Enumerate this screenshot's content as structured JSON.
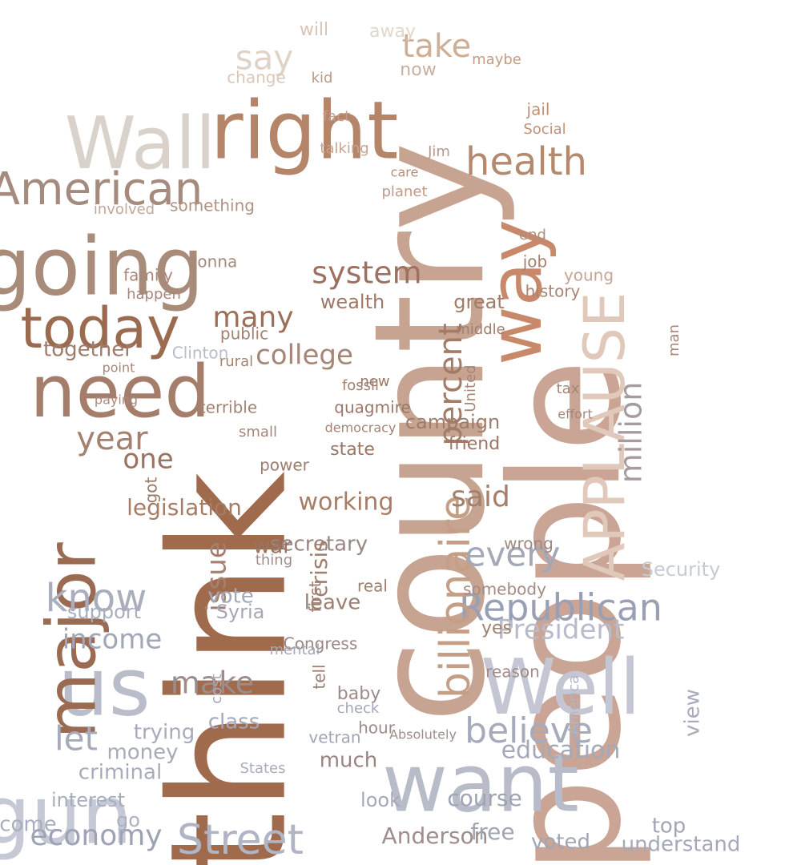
{
  "colors": {
    "background": "#ffffff",
    "warm_dark": "#9a6a4c",
    "warm_mid": "#c49a80",
    "warm_light": "#dcc4b2",
    "cool_dark": "#a7aec0",
    "cool_light": "#c6cad6"
  },
  "words": [
    {
      "text": "think",
      "color": "#a06a4d"
    },
    {
      "text": "country",
      "color": "#c6a491"
    },
    {
      "text": "people",
      "color": "#caa595"
    },
    {
      "text": "going",
      "color": "#a98b7a"
    },
    {
      "text": "right",
      "color": "#b48568"
    },
    {
      "text": "Wall",
      "color": "#d9d2ca"
    },
    {
      "text": "want",
      "color": "#b8bcc9"
    },
    {
      "text": "Well",
      "color": "#c4c7d3"
    },
    {
      "text": "gun",
      "color": "#c5c9d6"
    },
    {
      "text": "us",
      "color": "#b9bdca"
    },
    {
      "text": "need",
      "color": "#a47e6a"
    },
    {
      "text": "major",
      "color": "#9a6a52"
    },
    {
      "text": "today",
      "color": "#9b6b50"
    },
    {
      "text": "APPLAUSE",
      "color": "#e0c9ba"
    },
    {
      "text": "American",
      "color": "#a58b7e"
    },
    {
      "text": "way",
      "color": "#c7896a"
    },
    {
      "text": "health",
      "color": "#b48a6e"
    },
    {
      "text": "Republican",
      "color": "#9aa0b3"
    },
    {
      "text": "billionaire",
      "color": "#c59e86"
    },
    {
      "text": "Street",
      "color": "#b0b5c5"
    },
    {
      "text": "know",
      "color": "#a9aebd"
    },
    {
      "text": "believe",
      "color": "#a6abbc"
    },
    {
      "text": "every",
      "color": "#a3a8b9"
    },
    {
      "text": "system",
      "color": "#9d7161"
    },
    {
      "text": "say",
      "color": "#dfd3c8"
    },
    {
      "text": "take",
      "color": "#cfae96"
    },
    {
      "text": "year",
      "color": "#a3806f"
    },
    {
      "text": "million",
      "color": "#a69b9f"
    },
    {
      "text": "college",
      "color": "#a58676"
    },
    {
      "text": "percent",
      "color": "#a37c67"
    },
    {
      "text": "let",
      "color": "#a6abbc"
    },
    {
      "text": "economy",
      "color": "#9ea3b4"
    },
    {
      "text": "income",
      "color": "#a2a7b8"
    },
    {
      "text": "President",
      "color": "#b8bcca"
    },
    {
      "text": "education",
      "color": "#a4a9ba"
    },
    {
      "text": "make",
      "color": "#9c8d8b"
    },
    {
      "text": "issue",
      "color": "#a4806e"
    },
    {
      "text": "one",
      "color": "#9a725f"
    },
    {
      "text": "said",
      "color": "#a37f6c"
    },
    {
      "text": "many",
      "color": "#9c6f58"
    },
    {
      "text": "legislation",
      "color": "#a67c64"
    },
    {
      "text": "working",
      "color": "#a67d66"
    },
    {
      "text": "secretary",
      "color": "#9b8781"
    },
    {
      "text": "campaign",
      "color": "#9c7c6b"
    },
    {
      "text": "together",
      "color": "#9e7c6b"
    },
    {
      "text": "war",
      "color": "#9b7361"
    },
    {
      "text": "crisis",
      "color": "#a17e6c"
    },
    {
      "text": "Anderson",
      "color": "#9f8d89"
    },
    {
      "text": "course",
      "color": "#9fa4b4"
    },
    {
      "text": "free",
      "color": "#a0a5b5"
    },
    {
      "text": "voted",
      "color": "#a1a6b6"
    },
    {
      "text": "top",
      "color": "#a1a6b6"
    },
    {
      "text": "understand",
      "color": "#a4a9b9"
    },
    {
      "text": "Security",
      "color": "#c6cad5"
    },
    {
      "text": "view",
      "color": "#a7abbb"
    },
    {
      "text": "support",
      "color": "#a9aebd"
    },
    {
      "text": "leave",
      "color": "#9b7f72"
    },
    {
      "text": "vote",
      "color": "#a3a8b8"
    },
    {
      "text": "Syria",
      "color": "#a5a8b7"
    },
    {
      "text": "class",
      "color": "#a3a8b8"
    },
    {
      "text": "trying",
      "color": "#a6abba"
    },
    {
      "text": "money",
      "color": "#a6abba"
    },
    {
      "text": "criminal",
      "color": "#a7acbb"
    },
    {
      "text": "interest",
      "color": "#a8adbc"
    },
    {
      "text": "come",
      "color": "#a9adbc"
    },
    {
      "text": "go",
      "color": "#adb1bf"
    },
    {
      "text": "look",
      "color": "#a4a9b8"
    },
    {
      "text": "much",
      "color": "#9d8380"
    },
    {
      "text": "state",
      "color": "#9b7565"
    },
    {
      "text": "friend",
      "color": "#9c7565"
    },
    {
      "text": "great",
      "color": "#a17b66"
    },
    {
      "text": "wealth",
      "color": "#a07966"
    },
    {
      "text": "public",
      "color": "#a37f6e"
    },
    {
      "text": "power",
      "color": "#9f7c6c"
    },
    {
      "text": "terrible",
      "color": "#a38271"
    },
    {
      "text": "Clinton",
      "color": "#b8bcca"
    },
    {
      "text": "Congress",
      "color": "#9a8784"
    },
    {
      "text": "baby",
      "color": "#9e8a86"
    },
    {
      "text": "yes",
      "color": "#a1826f"
    },
    {
      "text": "gonna",
      "color": "#a48a7a"
    },
    {
      "text": "family",
      "color": "#a9867a"
    },
    {
      "text": "involved",
      "color": "#c0a89a"
    },
    {
      "text": "something",
      "color": "#b19282"
    },
    {
      "text": "change",
      "color": "#dac7ba"
    },
    {
      "text": "will",
      "color": "#d7c4b6"
    },
    {
      "text": "away",
      "color": "#e3d7cc"
    },
    {
      "text": "now",
      "color": "#c7b0a2"
    },
    {
      "text": "maybe",
      "color": "#c59c82"
    },
    {
      "text": "jail",
      "color": "#c08f72"
    },
    {
      "text": "Social",
      "color": "#c09077"
    },
    {
      "text": "care",
      "color": "#b88c73"
    },
    {
      "text": "planet",
      "color": "#c09a85"
    },
    {
      "text": "talking",
      "color": "#c4a492"
    },
    {
      "text": "fact",
      "color": "#c19c88"
    },
    {
      "text": "kid",
      "color": "#bd9983"
    },
    {
      "text": "job",
      "color": "#a57f6c"
    },
    {
      "text": "history",
      "color": "#a88474"
    },
    {
      "text": "end",
      "color": "#b28c78"
    },
    {
      "text": "young",
      "color": "#c5a594"
    },
    {
      "text": "happen",
      "color": "#a8877a"
    },
    {
      "text": "rural",
      "color": "#a58474"
    },
    {
      "text": "middle",
      "color": "#a07e6e"
    },
    {
      "text": "new",
      "color": "#9b7767"
    },
    {
      "text": "tax",
      "color": "#a58575"
    },
    {
      "text": "man",
      "color": "#a88678"
    },
    {
      "text": "Jim",
      "color": "#b7998a"
    },
    {
      "text": "United",
      "color": "#a98474"
    },
    {
      "text": "mental",
      "color": "#a3a8b8"
    },
    {
      "text": "tell",
      "color": "#9d7d6e"
    },
    {
      "text": "first",
      "color": "#9e7c6d"
    },
    {
      "text": "vetran",
      "color": "#a0a5b5"
    },
    {
      "text": "America",
      "color": "#b2b6c4"
    },
    {
      "text": "States",
      "color": "#a8adbc"
    },
    {
      "text": "cost",
      "color": "#a8a9b6"
    },
    {
      "text": "small",
      "color": "#a58575"
    },
    {
      "text": "got",
      "color": "#9a7868"
    },
    {
      "text": "point",
      "color": "#a8877a"
    },
    {
      "text": "paying",
      "color": "#aa8b7d"
    },
    {
      "text": "quagmire",
      "color": "#9a7767"
    },
    {
      "text": "democracy",
      "color": "#a38474"
    },
    {
      "text": "effort",
      "color": "#a88677"
    },
    {
      "text": "fossil",
      "color": "#a38170"
    },
    {
      "text": "real",
      "color": "#9d7f70"
    },
    {
      "text": "somebody",
      "color": "#a38a84"
    },
    {
      "text": "wrong",
      "color": "#9e8881"
    },
    {
      "text": "reason",
      "color": "#a08b86"
    },
    {
      "text": "hour",
      "color": "#9e8c89"
    },
    {
      "text": "check",
      "color": "#a2a7b7"
    },
    {
      "text": "thing",
      "color": "#a08d8a"
    },
    {
      "text": "Absolutely",
      "color": "#9f8c89"
    }
  ]
}
